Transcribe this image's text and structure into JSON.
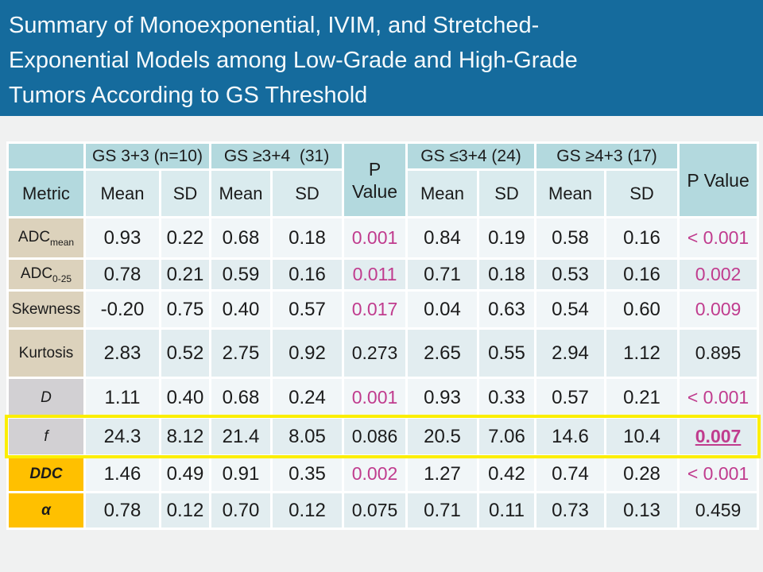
{
  "title": {
    "line1": "Summary of Monoexponential, IVIM, and Stretched-",
    "line2": "Exponential Models among Low-Grade and High-Grade",
    "line3": "Tumors According to GS Threshold"
  },
  "colors": {
    "title_bar_blue": "#156B9D",
    "header_teal": "#B3D9DE",
    "subheader_teal": "#DAEBEE",
    "row_band_light": "#F1F6F8",
    "row_band_tint": "#E2EDF0",
    "label_beige": "#DCD2BC",
    "label_gray": "#D2D0D3",
    "label_orange": "#FFC000",
    "significant_pink": "#C03C8E",
    "highlight_yellow": "#FBEE00"
  },
  "table": {
    "header": {
      "metric": "Metric",
      "group1": "GS 3+3 (n=10)",
      "group2": "GS ≥3+4  (31)",
      "p1": "P Value",
      "group3": "GS ≤3+4 (24)",
      "group4": "GS ≥4+3 (17)",
      "p2": "P Value",
      "mean": "Mean",
      "sd": "SD"
    },
    "rows": [
      {
        "metric": "ADC",
        "metric_sub": "mean",
        "values": [
          "0.93",
          "0.22",
          "0.68",
          "0.18",
          "0.001",
          "0.84",
          "0.19",
          "0.58",
          "0.16",
          "< 0.001"
        ]
      },
      {
        "metric": "ADC",
        "metric_sub": "0-25",
        "values": [
          "0.78",
          "0.21",
          "0.59",
          "0.16",
          "0.011",
          "0.71",
          "0.18",
          "0.53",
          "0.16",
          "0.002"
        ]
      },
      {
        "metric": "Skewness",
        "values": [
          "-0.20",
          "0.75",
          "0.40",
          "0.57",
          "0.017",
          "0.04",
          "0.63",
          "0.54",
          "0.60",
          "0.009"
        ]
      },
      {
        "metric": "Kurtosis",
        "values": [
          "2.83",
          "0.52",
          "2.75",
          "0.92",
          "0.273",
          "2.65",
          "0.55",
          "2.94",
          "1.12",
          "0.895"
        ]
      },
      {
        "metric": "D",
        "values": [
          "1.11",
          "0.40",
          "0.68",
          "0.24",
          "0.001",
          "0.93",
          "0.33",
          "0.57",
          "0.21",
          "< 0.001"
        ]
      },
      {
        "metric": "f",
        "values": [
          "24.3",
          "8.12",
          "21.4",
          "8.05",
          "0.086",
          "20.5",
          "7.06",
          "14.6",
          "10.4",
          "0.007"
        ]
      },
      {
        "metric": "DDC",
        "values": [
          "1.46",
          "0.49",
          "0.91",
          "0.35",
          "0.002",
          "1.27",
          "0.42",
          "0.74",
          "0.28",
          "< 0.001"
        ]
      },
      {
        "metric": "α",
        "values": [
          "0.78",
          "0.12",
          "0.70",
          "0.12",
          "0.075",
          "0.71",
          "0.11",
          "0.73",
          "0.13",
          "0.459"
        ]
      }
    ]
  }
}
